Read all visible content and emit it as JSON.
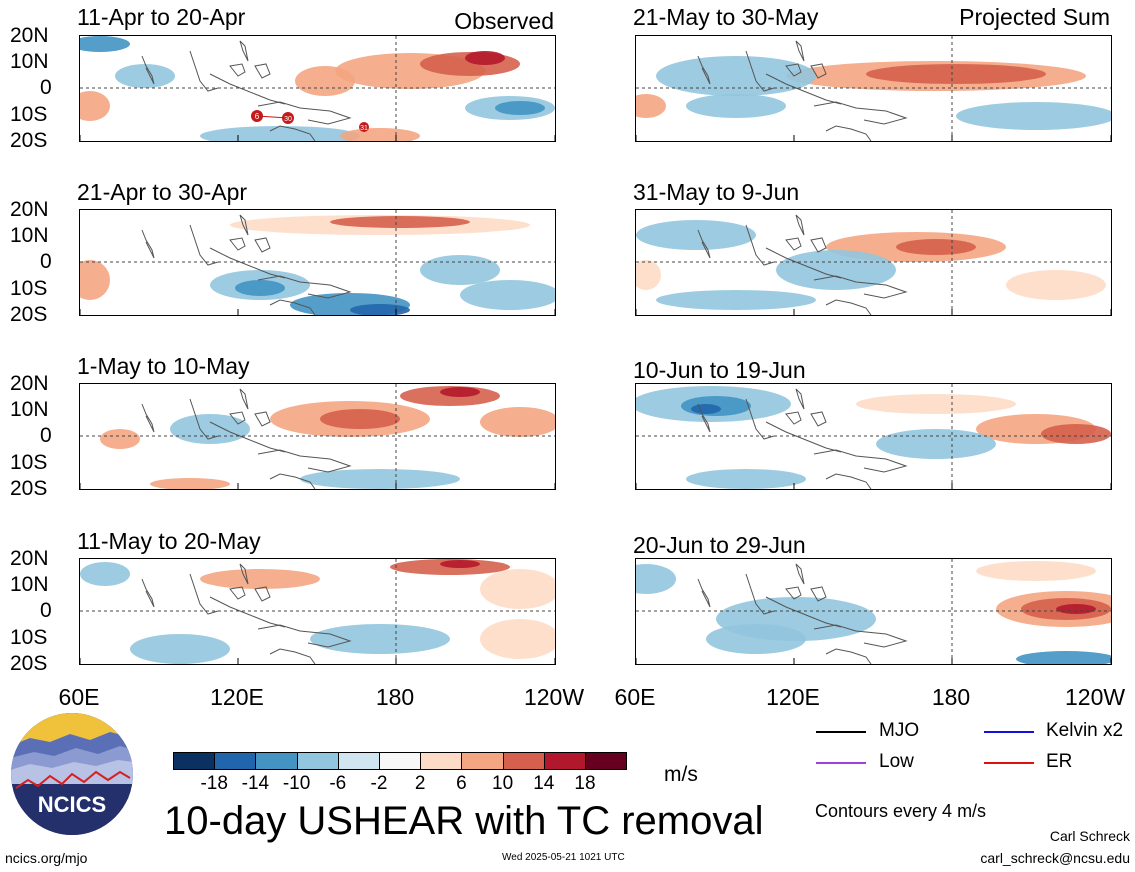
{
  "panels": [
    {
      "title": "11-Apr to 20-Apr",
      "corner": "Observed"
    },
    {
      "title": "21-Apr to 30-Apr",
      "corner": ""
    },
    {
      "title": "1-May to 10-May",
      "corner": ""
    },
    {
      "title": "11-May to 20-May",
      "corner": ""
    },
    {
      "title": "21-May to 30-May",
      "corner": "Projected Sum"
    },
    {
      "title": "31-May to 9-Jun",
      "corner": ""
    },
    {
      "title": "10-Jun to 19-Jun",
      "corner": ""
    },
    {
      "title": "20-Jun to 29-Jun",
      "corner": ""
    }
  ],
  "lat_labels": [
    "20N",
    "10N",
    "0",
    "10S",
    "20S"
  ],
  "lon_labels": [
    "60E",
    "120E",
    "180",
    "120W"
  ],
  "colorbar": {
    "labels": [
      "-18",
      "-14",
      "-10",
      "-6",
      "-2",
      "2",
      "6",
      "10",
      "14",
      "18"
    ],
    "colors": [
      "#0a3161",
      "#2166ac",
      "#4393c3",
      "#92c5de",
      "#d1e5f0",
      "#f7f7f7",
      "#fddbc7",
      "#f4a582",
      "#d6604d",
      "#b2182b",
      "#67001f"
    ],
    "units": "m/s"
  },
  "storm_markers": [
    "6",
    "30",
    "31"
  ],
  "legend": [
    {
      "label": "MJO",
      "color": "#000000"
    },
    {
      "label": "Kelvin x2",
      "color": "#1010e0"
    },
    {
      "label": "Low",
      "color": "#a040e0"
    },
    {
      "label": "ER",
      "color": "#e01010"
    }
  ],
  "contours_note": "Contours every 4 m/s",
  "main_title": "10-day USHEAR with TC removal",
  "logo_text": "NCICS",
  "footer": {
    "url": "ncics.org/mjo",
    "timestamp": "Wed 2025-05-21 1021 UTC",
    "author": "Carl Schreck",
    "email": "carl_schreck@ncsu.edu"
  }
}
